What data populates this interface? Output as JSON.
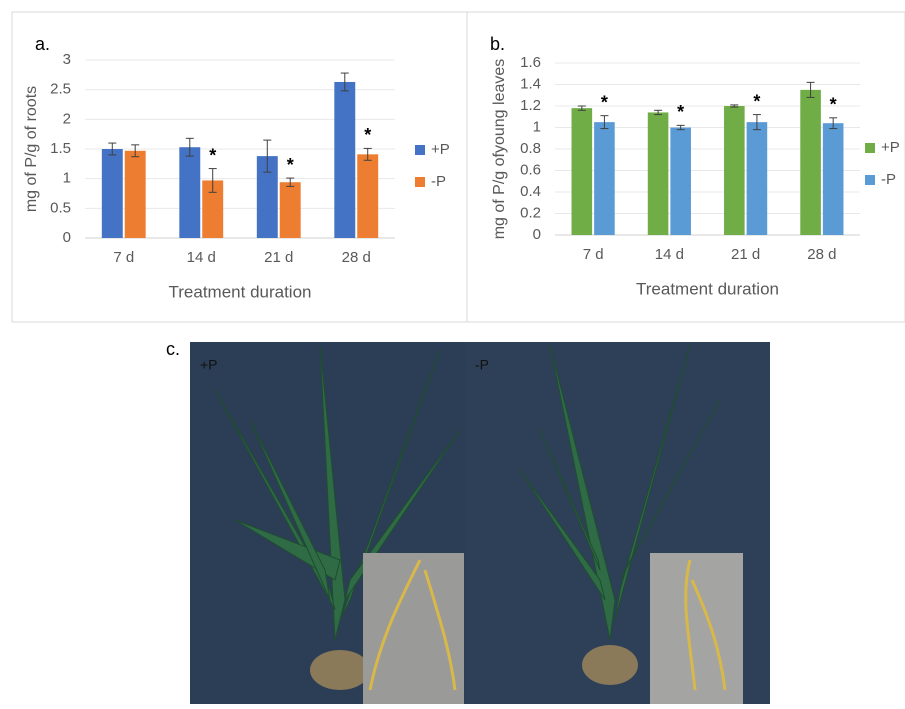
{
  "chart_data": [
    {
      "type": "bar",
      "panel_label": "a.",
      "y_label": "mg of P/g of roots",
      "x_label": "Treatment duration",
      "categories": [
        "7 d",
        "14 d",
        "21 d",
        "28 d"
      ],
      "series": [
        {
          "name": "+P",
          "color": "#4472c4",
          "values": [
            1.5,
            1.53,
            1.38,
            2.63
          ],
          "errors": [
            0.1,
            0.15,
            0.27,
            0.15
          ]
        },
        {
          "name": "-P",
          "color": "#ed7d31",
          "values": [
            1.47,
            0.97,
            0.94,
            1.41
          ],
          "errors": [
            0.1,
            0.2,
            0.07,
            0.1
          ],
          "markers": [
            null,
            "*",
            "*",
            "*"
          ]
        }
      ],
      "ylim": [
        0,
        3
      ],
      "yticks": [
        0,
        0.5,
        1,
        1.5,
        2,
        2.5,
        3
      ],
      "grid": true,
      "legend": "right"
    },
    {
      "type": "bar",
      "panel_label": "b.",
      "y_label": "mg of P/g ofyoung leaves",
      "x_label": "Treatment duration",
      "categories": [
        "7 d",
        "14 d",
        "21 d",
        "28 d"
      ],
      "series": [
        {
          "name": "+P",
          "color": "#70ad47",
          "values": [
            1.18,
            1.14,
            1.2,
            1.35
          ],
          "errors": [
            0.02,
            0.02,
            0.01,
            0.07
          ]
        },
        {
          "name": "-P",
          "color": "#5b9bd5",
          "values": [
            1.05,
            1.0,
            1.05,
            1.04
          ],
          "errors": [
            0.06,
            0.02,
            0.07,
            0.05
          ],
          "markers": [
            "*",
            "*",
            "*",
            "*"
          ]
        }
      ],
      "ylim": [
        0,
        1.6
      ],
      "yticks": [
        0,
        0.2,
        0.4,
        0.6,
        0.8,
        1,
        1.2,
        1.4,
        1.6
      ],
      "grid": true,
      "legend": "right"
    }
  ],
  "photo": {
    "panel_label": "c.",
    "left_label": "+P",
    "right_label": "-P"
  }
}
